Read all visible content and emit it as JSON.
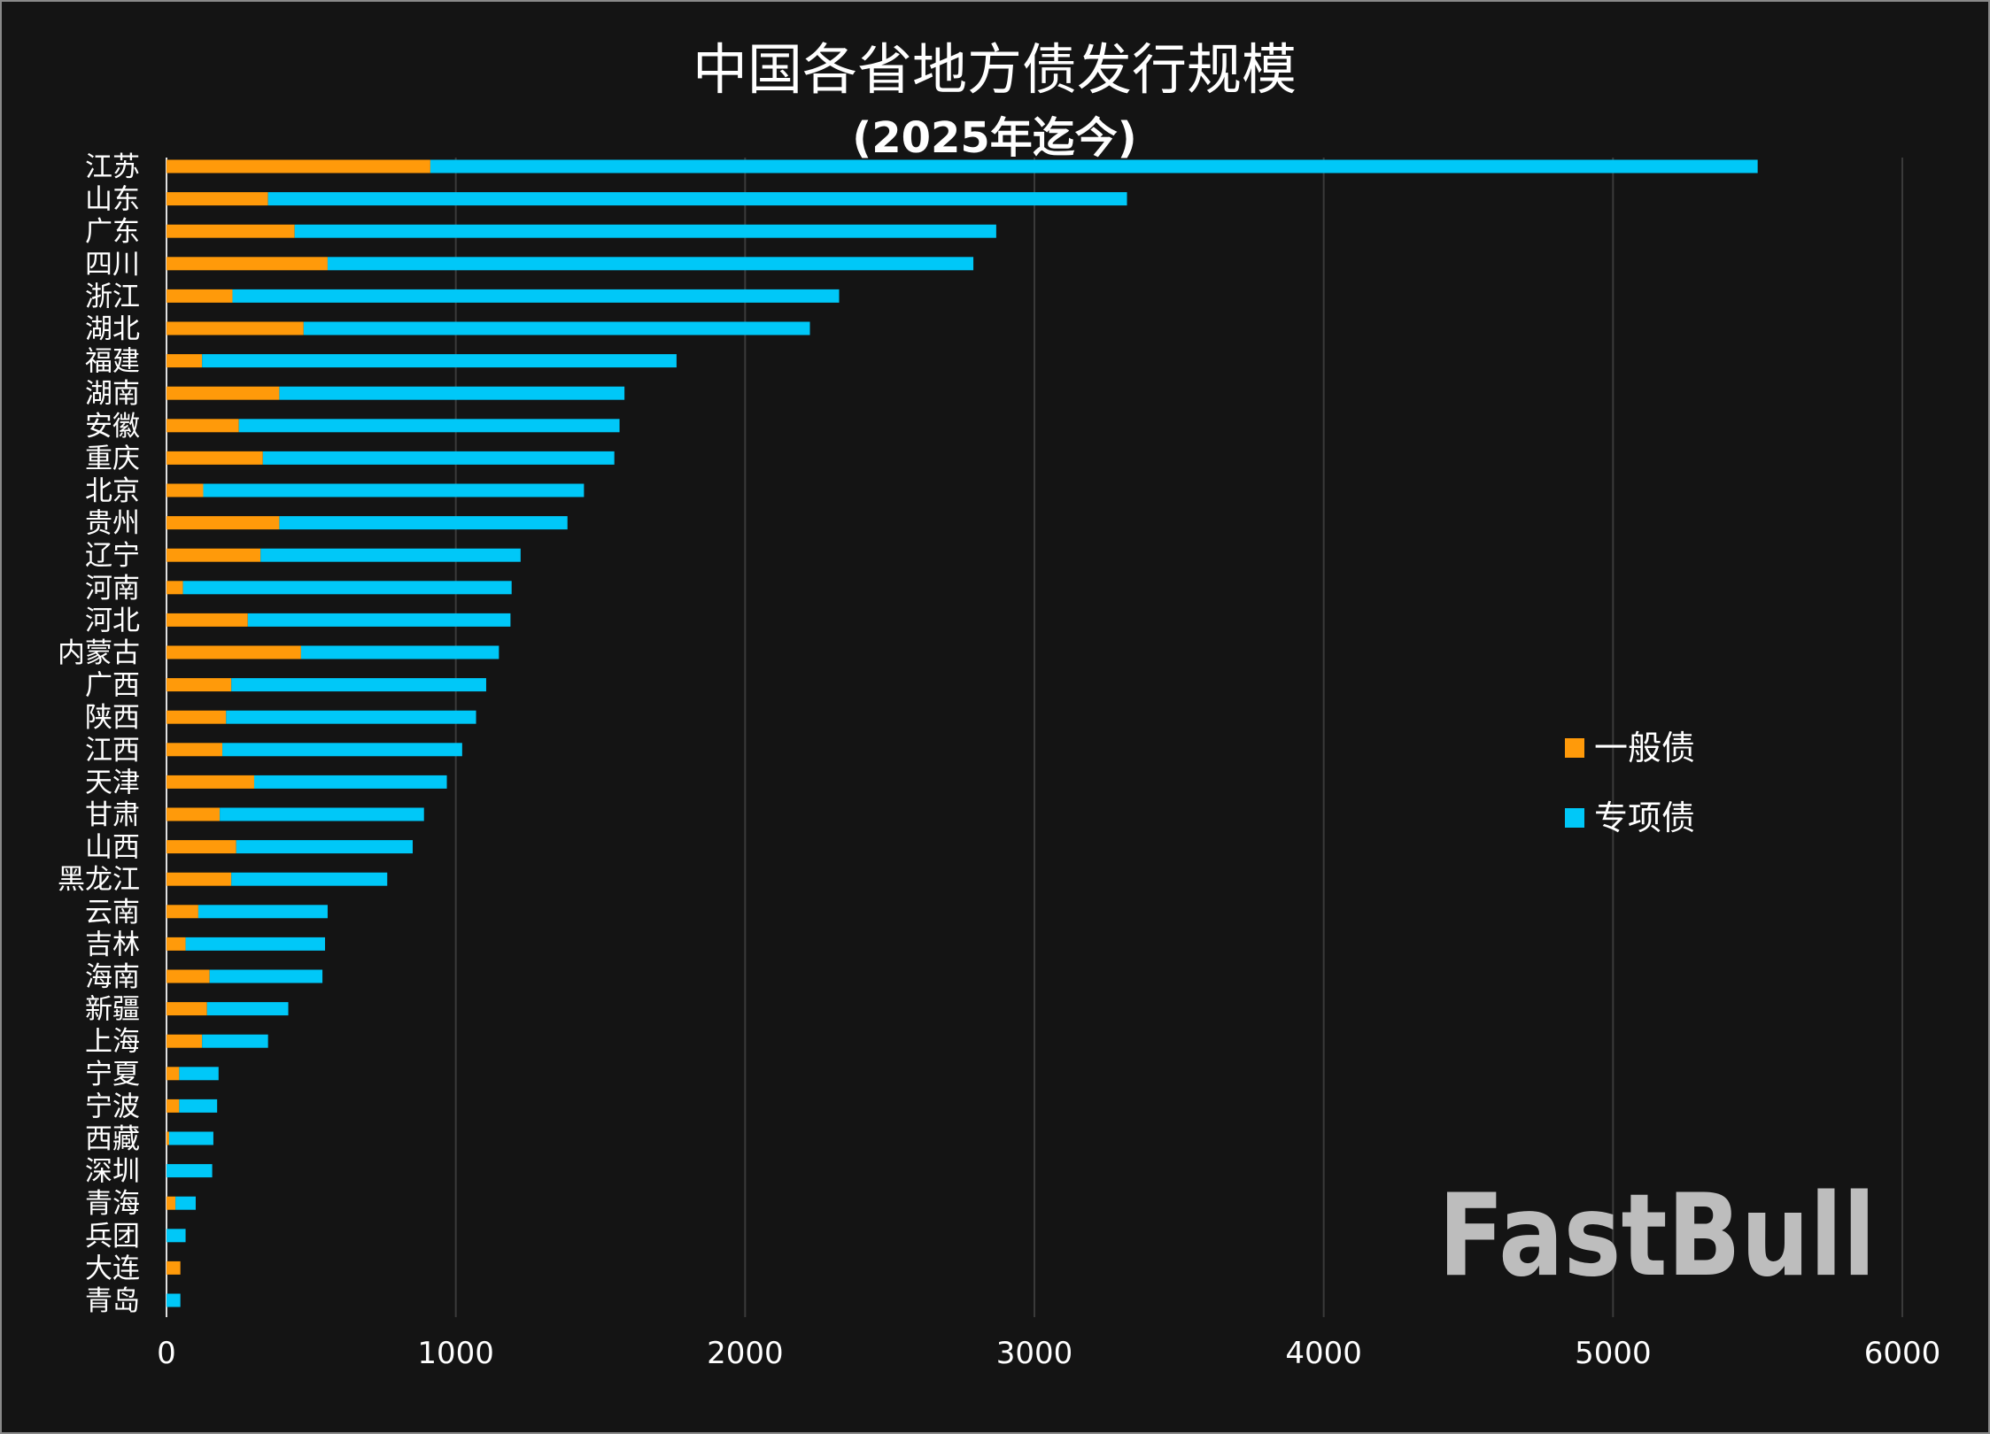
{
  "chart_data": {
    "type": "bar",
    "orientation": "horizontal",
    "stacked": true,
    "title": "中国各省地方债发行规模",
    "subtitle": "(2025年迄今)",
    "xlim": [
      0,
      6000
    ],
    "xticks": [
      "0",
      "1000",
      "2000",
      "3000",
      "4000",
      "5000",
      "6000"
    ],
    "grid": "vertical",
    "legend_position": "right",
    "categories": [
      "江苏",
      "山东",
      "广东",
      "四川",
      "浙江",
      "湖北",
      "福建",
      "湖南",
      "安徽",
      "重庆",
      "北京",
      "贵州",
      "辽宁",
      "河南",
      "河北",
      "内蒙古",
      "广西",
      "陕西",
      "江西",
      "天津",
      "甘肃",
      "山西",
      "黑龙江",
      "云南",
      "吉林",
      "海南",
      "新疆",
      "上海",
      "宁夏",
      "宁波",
      "西藏",
      "深圳",
      "青海",
      "兵团",
      "大连",
      "青岛"
    ],
    "series": [
      {
        "name": "一般债",
        "color": "#ff9a0a",
        "values": [
          912,
          351,
          443,
          557,
          228,
          474,
          123,
          390,
          250,
          333,
          127,
          390,
          325,
          57,
          281,
          465,
          224,
          206,
          193,
          303,
          184,
          241,
          224,
          110,
          66,
          149,
          140,
          123,
          44,
          44,
          9,
          0,
          31,
          0,
          48,
          0
        ]
      },
      {
        "name": "专项债",
        "color": "#00c8f8",
        "values": [
          4588,
          2969,
          2425,
          2232,
          2097,
          1750,
          1640,
          1193,
          1316,
          1215,
          1316,
          996,
          899,
          1136,
          908,
          684,
          881,
          864,
          829,
          666,
          706,
          610,
          539,
          447,
          482,
          390,
          281,
          228,
          136,
          131,
          153,
          158,
          70,
          66,
          0,
          48
        ]
      }
    ]
  },
  "watermark": "FastBull",
  "colors": {
    "background": "#141414",
    "grid": "#3a3a3a",
    "text": "#ffffff"
  }
}
